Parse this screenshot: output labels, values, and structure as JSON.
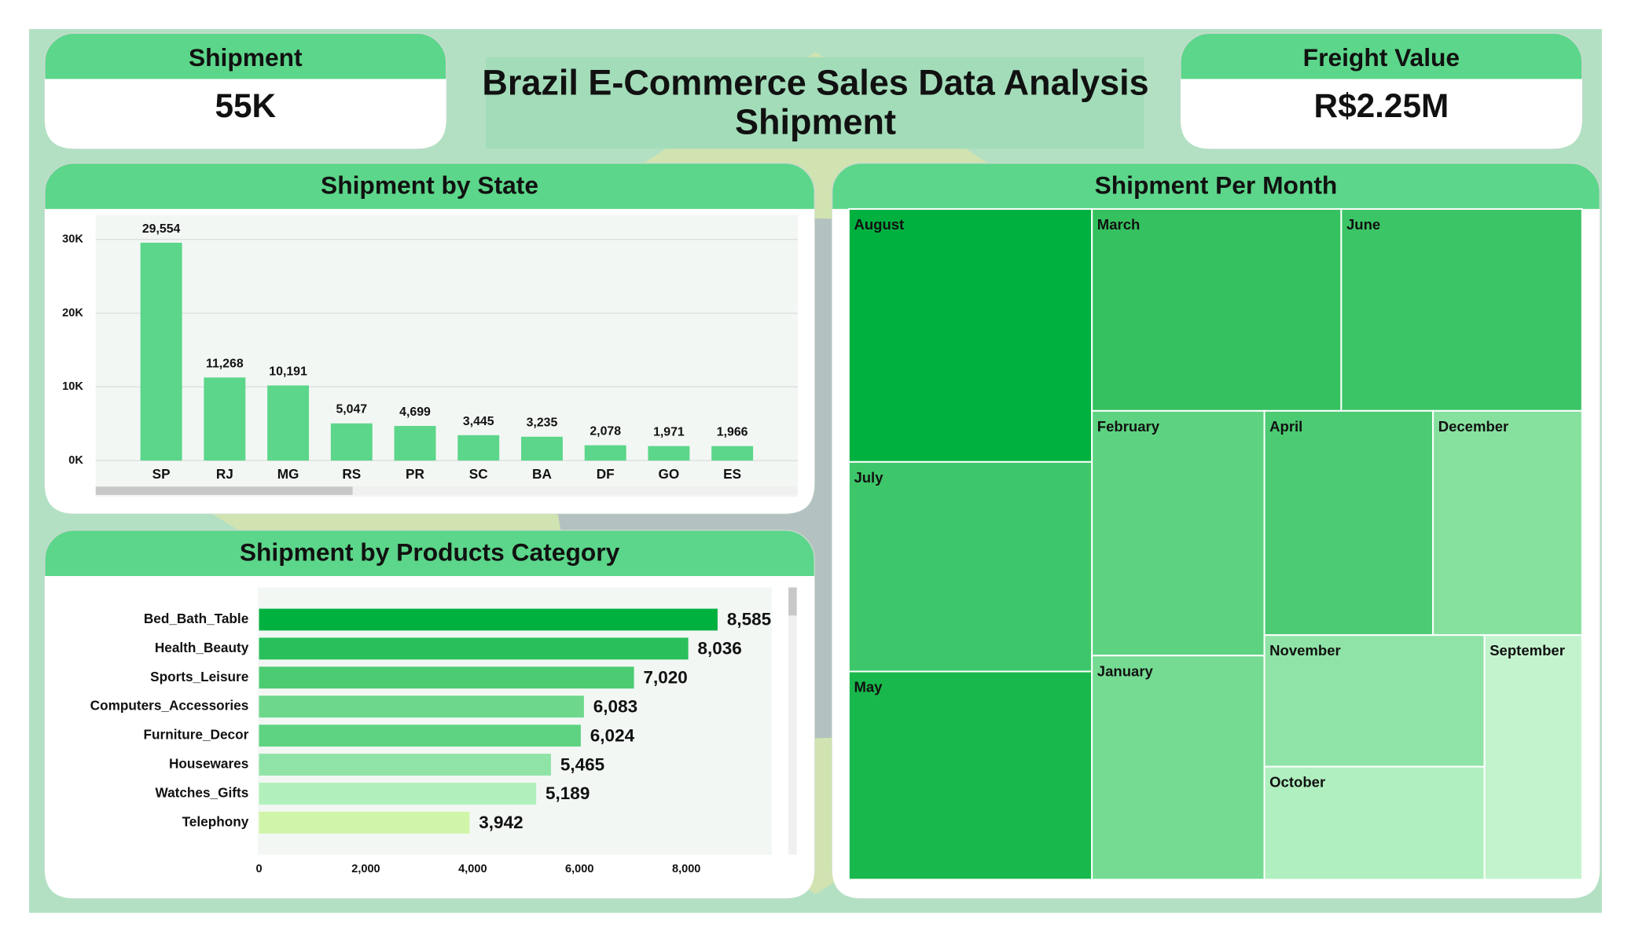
{
  "header": {
    "title": [
      "Brazil E-Commerce Sales Data Analysis",
      "Shipment"
    ]
  },
  "kpis": [
    {
      "label": "Shipment",
      "value": "55K"
    },
    {
      "label": "Freight Value",
      "value": "R$2.25M"
    }
  ],
  "chart_data": [
    {
      "type": "bar",
      "orientation": "vertical",
      "title": "Shipment by State",
      "categories": [
        "SP",
        "RJ",
        "MG",
        "RS",
        "PR",
        "SC",
        "BA",
        "DF",
        "GO",
        "ES"
      ],
      "values": [
        29554,
        11268,
        10191,
        5047,
        4699,
        3445,
        3235,
        2078,
        1971,
        1966
      ],
      "value_labels": [
        "29,554",
        "11,268",
        "10,191",
        "5,047",
        "4,699",
        "3,445",
        "3,235",
        "2,078",
        "1,971",
        "1,966"
      ],
      "color": "#5cd68a",
      "ylim": [
        0,
        33000
      ],
      "yticks": [
        {
          "value": 0,
          "label": "0K"
        },
        {
          "value": 10000,
          "label": "10K"
        },
        {
          "value": 20000,
          "label": "20K"
        },
        {
          "value": 30000,
          "label": "30K"
        }
      ],
      "grid": true
    },
    {
      "type": "bar",
      "orientation": "horizontal",
      "title": "Shipment by Products Category",
      "categories": [
        "Bed_Bath_Table",
        "Health_Beauty",
        "Sports_Leisure",
        "Computers_Accessories",
        "Furniture_Decor",
        "Housewares",
        "Watches_Gifts",
        "Telephony"
      ],
      "values": [
        8585,
        8036,
        7020,
        6083,
        6024,
        5465,
        5189,
        3942
      ],
      "value_labels": [
        "8,585",
        "8,036",
        "7,020",
        "6,083",
        "6,024",
        "5,465",
        "5,189",
        "3,942"
      ],
      "colors": [
        "#00b140",
        "#29c05c",
        "#4ccb73",
        "#6dd88c",
        "#5ed382",
        "#8fe3a6",
        "#b1f0bc",
        "#d0f5a8"
      ],
      "xlim": [
        0,
        9600
      ],
      "xticks": [
        0,
        {
          "value": 2000,
          "label": "2,000"
        },
        {
          "value": 4000,
          "label": "4,000"
        },
        {
          "value": 6000,
          "label": "6,000"
        },
        {
          "value": 8000,
          "label": "8,000"
        }
      ],
      "grid": false
    },
    {
      "type": "treemap",
      "title": "Shipment Per Month",
      "categories": [
        "August",
        "July",
        "May",
        "March",
        "June",
        "February",
        "January",
        "April",
        "December",
        "November",
        "October",
        "September"
      ],
      "values": [
        6880,
        5700,
        5660,
        5630,
        5440,
        4720,
        4320,
        4230,
        3740,
        3240,
        2780,
        2670
      ],
      "colors": [
        "#00b140",
        "#3ec76a",
        "#19b84c",
        "#35c15f",
        "#3cc566",
        "#5dd381",
        "#75db93",
        "#4ccb73",
        "#86e09e",
        "#8fe3a6",
        "#b0efbf",
        "#c3f3cd"
      ]
    }
  ]
}
